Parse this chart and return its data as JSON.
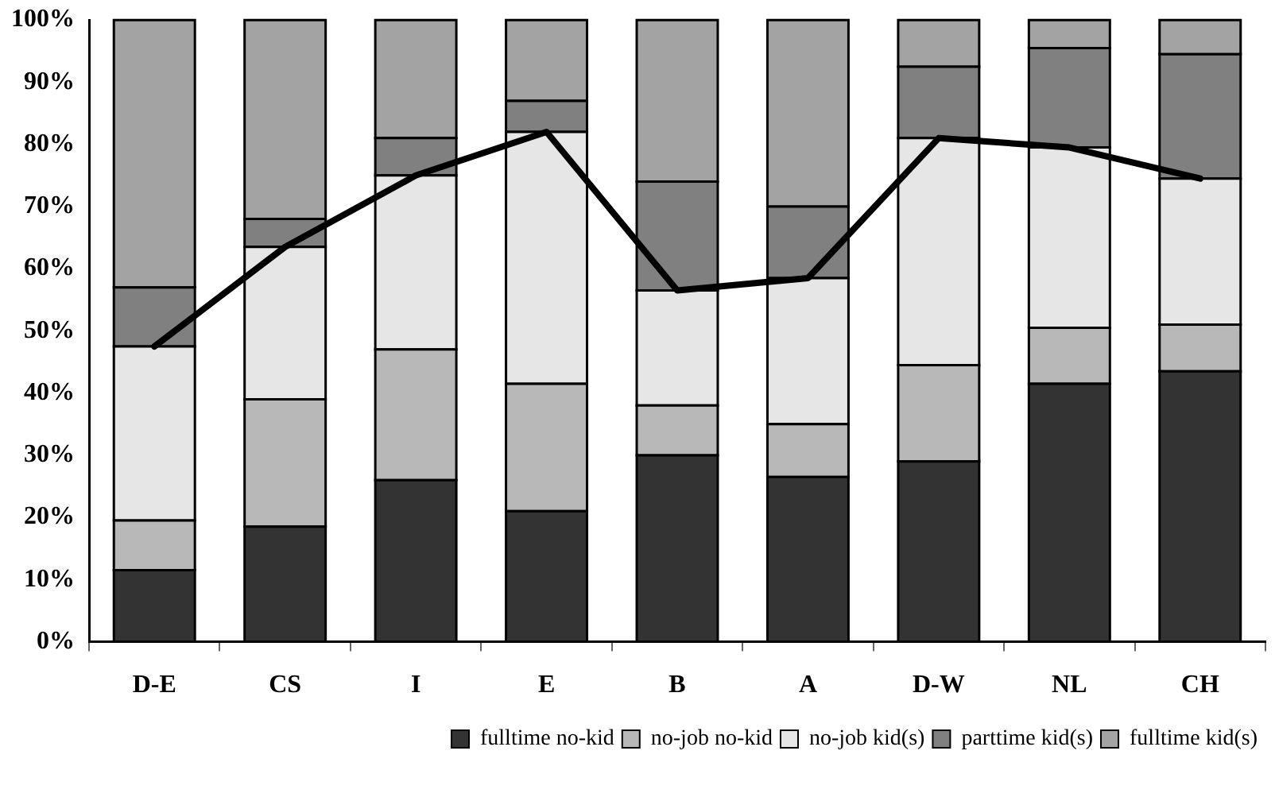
{
  "chart_data": {
    "type": "bar",
    "stacked": true,
    "categories": [
      "D-E",
      "CS",
      "I",
      "E",
      "B",
      "A",
      "D-W",
      "NL",
      "CH"
    ],
    "series": [
      {
        "name": "fulltime no-kid",
        "color": "#333333",
        "values": [
          11.5,
          18.5,
          26,
          21,
          30,
          26.5,
          29,
          41.5,
          43.5
        ]
      },
      {
        "name": "no-job no-kid",
        "color": "#b8b8b8",
        "values": [
          8,
          20.5,
          21,
          20.5,
          8,
          8.5,
          15.5,
          9,
          7.5
        ]
      },
      {
        "name": "no-job kid(s)",
        "color": "#e6e6e6",
        "values": [
          28,
          24.5,
          28,
          40.5,
          18.5,
          23.5,
          36.5,
          29,
          23.5
        ]
      },
      {
        "name": "parttime kid(s)",
        "color": "#808080",
        "values": [
          9.5,
          4.5,
          6,
          5,
          17.5,
          11.5,
          11.5,
          16,
          20
        ]
      },
      {
        "name": "fulltime kid(s)",
        "color": "#a3a3a3",
        "values": [
          43,
          32,
          19,
          13,
          26,
          30,
          7.5,
          4.5,
          5.5
        ]
      },
      {
        "type": "line",
        "color": "#000000",
        "values": [
          47.5,
          63.5,
          75,
          82,
          56.5,
          58.5,
          81,
          79.5,
          74.5
        ]
      }
    ],
    "ylim": [
      0,
      100
    ],
    "yticks": [
      {
        "value": 0,
        "label": "0%"
      },
      {
        "value": 10,
        "label": "10%"
      },
      {
        "value": 20,
        "label": "20%"
      },
      {
        "value": 30,
        "label": "30%"
      },
      {
        "value": 40,
        "label": "40%"
      },
      {
        "value": 50,
        "label": "50%"
      },
      {
        "value": 60,
        "label": "60%"
      },
      {
        "value": 70,
        "label": "70%"
      },
      {
        "value": 80,
        "label": "80%"
      },
      {
        "value": 90,
        "label": "90%"
      },
      {
        "value": 100,
        "label": "100%"
      }
    ],
    "grid": false,
    "legend": "bottom",
    "marker": "none"
  }
}
